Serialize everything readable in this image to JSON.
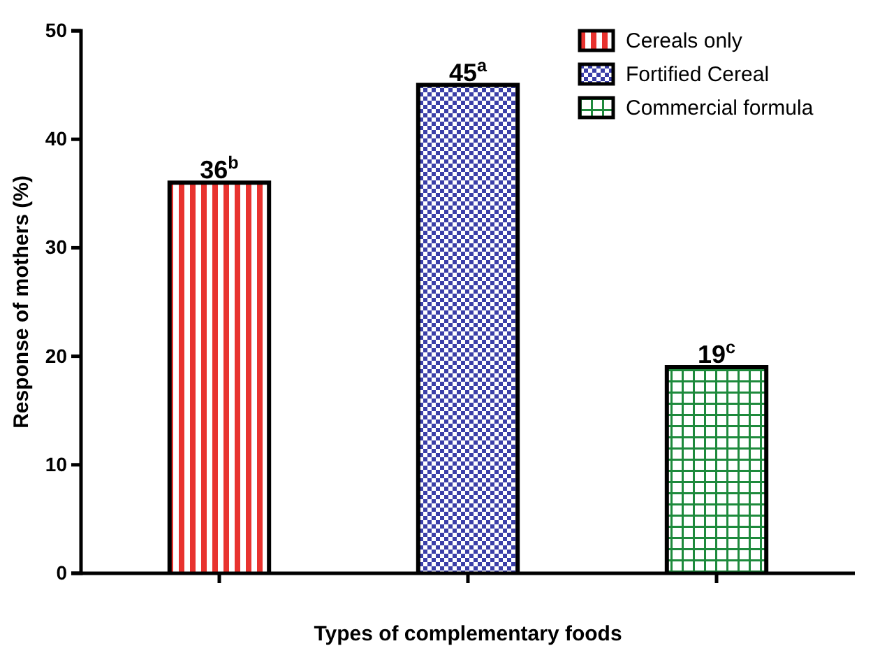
{
  "chart_data": {
    "type": "bar",
    "xlabel": "Types of complementary foods",
    "ylabel": "Response of mothers (%)",
    "categories": [
      null,
      null,
      null
    ],
    "series": [
      {
        "name": "Cereals only",
        "color": "#e8332f",
        "values": [
          36,
          null,
          null
        ],
        "value_labels": [
          "36$^{b}$",
          null,
          null
        ]
      },
      {
        "name": "Fortified Cereal",
        "color": "#3b3fa8",
        "values": [
          null,
          45,
          null
        ],
        "value_labels": [
          null,
          "45$^{a}$",
          null
        ]
      },
      {
        "name": "Commercial formula",
        "color": "#1e8a3c",
        "values": [
          null,
          null,
          19
        ],
        "value_labels": [
          null,
          null,
          "19$^{c}$"
        ]
      }
    ],
    "ylim": [
      0,
      50
    ],
    "yticks": [
      0,
      10,
      20,
      30,
      40,
      50
    ],
    "legend": "top right",
    "grid": false
  }
}
